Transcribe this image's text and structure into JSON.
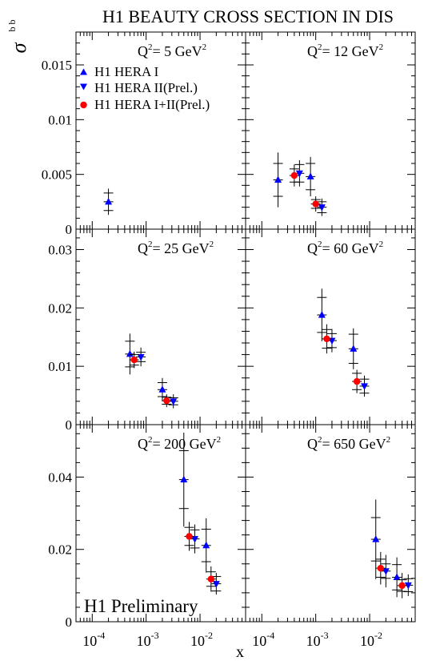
{
  "title": "H1 BEAUTY CROSS SECTION IN DIS",
  "watermark": "H1 Preliminary",
  "ylabel": "σ",
  "ylabel_sup": "b b",
  "xlabel": "x",
  "legend": [
    {
      "label": "H1 HERA I",
      "marker": "triangle-up",
      "color": "#0000ff"
    },
    {
      "label": "H1 HERA II(Prel.)",
      "marker": "triangle-down",
      "color": "#0000ff"
    },
    {
      "label": "H1 HERA I+II(Prel.)",
      "marker": "circle",
      "color": "#ff0000"
    }
  ],
  "x_ticks": [
    {
      "base": "10",
      "exp": "-4",
      "value": 0.0001
    },
    {
      "base": "10",
      "exp": "-3",
      "value": 0.001
    },
    {
      "base": "10",
      "exp": "-2",
      "value": 0.01
    }
  ],
  "chart_data": [
    {
      "type": "scatter",
      "panel": "Q2_5",
      "q2_label": "Q",
      "q2_text": "= 5 GeV",
      "x_scale": "log",
      "xlim": [
        5e-05,
        0.07
      ],
      "ylim": [
        0,
        0.018
      ],
      "yticks": [
        {
          "v": 0,
          "label": "0"
        },
        {
          "v": 0.005,
          "label": "0.005"
        },
        {
          "v": 0.01,
          "label": "0.01"
        },
        {
          "v": 0.015,
          "label": "0.015"
        }
      ],
      "series": [
        {
          "name": "H1 HERA I",
          "points": [
            {
              "x": 0.0002,
              "y": 0.0025,
              "stat": 0.0008,
              "tot": 0.0012
            }
          ]
        },
        {
          "name": "H1 HERA II(Prel.)",
          "points": []
        },
        {
          "name": "H1 HERA I+II(Prel.)",
          "points": []
        }
      ]
    },
    {
      "type": "scatter",
      "panel": "Q2_12",
      "q2_label": "Q",
      "q2_text": "= 12 GeV",
      "x_scale": "log",
      "xlim": [
        5e-05,
        0.07
      ],
      "ylim": [
        0,
        0.018
      ],
      "yticks": [
        {
          "v": 0,
          "label": ""
        },
        {
          "v": 0.005,
          "label": ""
        },
        {
          "v": 0.01,
          "label": ""
        },
        {
          "v": 0.015,
          "label": ""
        }
      ],
      "series": [
        {
          "name": "H1 HERA I",
          "points": [
            {
              "x": 0.0002,
              "y": 0.0045,
              "stat": 0.0015,
              "tot": 0.0025
            },
            {
              "x": 0.0008,
              "y": 0.0048,
              "stat": 0.0012,
              "tot": 0.0018
            }
          ]
        },
        {
          "name": "H1 HERA II(Prel.)",
          "points": [
            {
              "x": 0.0005,
              "y": 0.0051,
              "stat": 0.0008,
              "tot": 0.0012
            },
            {
              "x": 0.0013,
              "y": 0.002,
              "stat": 0.0005,
              "tot": 0.0008
            }
          ]
        },
        {
          "name": "H1 HERA I+II(Prel.)",
          "points": [
            {
              "x": 0.0004,
              "y": 0.0049,
              "stat": 0.0006,
              "tot": 0.001
            },
            {
              "x": 0.001,
              "y": 0.0023,
              "stat": 0.0004,
              "tot": 0.0007
            }
          ]
        }
      ]
    },
    {
      "type": "scatter",
      "panel": "Q2_25",
      "q2_label": "Q",
      "q2_text": "= 25 GeV",
      "x_scale": "log",
      "xlim": [
        5e-05,
        0.07
      ],
      "ylim": [
        0,
        0.0335
      ],
      "yticks": [
        {
          "v": 0,
          "label": "0"
        },
        {
          "v": 0.01,
          "label": "0.01"
        },
        {
          "v": 0.02,
          "label": "0.02"
        },
        {
          "v": 0.03,
          "label": "0.03"
        }
      ],
      "series": [
        {
          "name": "H1 HERA I",
          "points": [
            {
              "x": 0.0005,
              "y": 0.0121,
              "stat": 0.0022,
              "tot": 0.0035
            },
            {
              "x": 0.002,
              "y": 0.006,
              "stat": 0.0012,
              "tot": 0.002
            }
          ]
        },
        {
          "name": "H1 HERA II(Prel.)",
          "points": [
            {
              "x": 0.0008,
              "y": 0.0116,
              "stat": 0.0008,
              "tot": 0.0016
            },
            {
              "x": 0.0032,
              "y": 0.004,
              "stat": 0.0006,
              "tot": 0.0012
            }
          ]
        },
        {
          "name": "H1 HERA I+II(Prel.)",
          "points": [
            {
              "x": 0.0006,
              "y": 0.0111,
              "stat": 0.0009,
              "tot": 0.0014
            },
            {
              "x": 0.0024,
              "y": 0.0041,
              "stat": 0.0006,
              "tot": 0.0011
            }
          ]
        }
      ]
    },
    {
      "type": "scatter",
      "panel": "Q2_60",
      "q2_label": "Q",
      "q2_text": "= 60 GeV",
      "x_scale": "log",
      "xlim": [
        5e-05,
        0.07
      ],
      "ylim": [
        0,
        0.0335
      ],
      "yticks": [
        {
          "v": 0,
          "label": ""
        },
        {
          "v": 0.01,
          "label": ""
        },
        {
          "v": 0.02,
          "label": ""
        },
        {
          "v": 0.03,
          "label": ""
        }
      ],
      "series": [
        {
          "name": "H1 HERA I",
          "points": [
            {
              "x": 0.0013,
              "y": 0.0188,
              "stat": 0.003,
              "tot": 0.0045
            },
            {
              "x": 0.005,
              "y": 0.013,
              "stat": 0.0025,
              "tot": 0.0035
            }
          ]
        },
        {
          "name": "H1 HERA II(Prel.)",
          "points": [
            {
              "x": 0.002,
              "y": 0.0144,
              "stat": 0.0012,
              "tot": 0.002
            },
            {
              "x": 0.008,
              "y": 0.0066,
              "stat": 0.0012,
              "tot": 0.0018
            }
          ]
        },
        {
          "name": "H1 HERA I+II(Prel.)",
          "points": [
            {
              "x": 0.0016,
              "y": 0.0147,
              "stat": 0.0016,
              "tot": 0.0025
            },
            {
              "x": 0.0058,
              "y": 0.0074,
              "stat": 0.0014,
              "tot": 0.002
            }
          ]
        }
      ]
    },
    {
      "type": "scatter",
      "panel": "Q2_200",
      "q2_label": "Q",
      "q2_text": "= 200 GeV",
      "x_scale": "log",
      "xlim": [
        5e-05,
        0.07
      ],
      "ylim": [
        0,
        0.0545
      ],
      "yticks": [
        {
          "v": 0,
          "label": "0"
        },
        {
          "v": 0.02,
          "label": "0.02"
        },
        {
          "v": 0.04,
          "label": "0.04"
        }
      ],
      "series": [
        {
          "name": "H1 HERA I",
          "points": [
            {
              "x": 0.005,
              "y": 0.0393,
              "stat": 0.008,
              "tot": 0.013
            },
            {
              "x": 0.013,
              "y": 0.0211,
              "stat": 0.0045,
              "tot": 0.0075
            }
          ]
        },
        {
          "name": "H1 HERA II(Prel.)",
          "points": [
            {
              "x": 0.008,
              "y": 0.0229,
              "stat": 0.0025,
              "tot": 0.004
            },
            {
              "x": 0.02,
              "y": 0.0105,
              "stat": 0.002,
              "tot": 0.003
            }
          ]
        },
        {
          "name": "H1 HERA I+II(Prel.)",
          "points": [
            {
              "x": 0.0063,
              "y": 0.0236,
              "stat": 0.0025,
              "tot": 0.004
            },
            {
              "x": 0.016,
              "y": 0.0118,
              "stat": 0.002,
              "tot": 0.0035
            }
          ]
        }
      ]
    },
    {
      "type": "scatter",
      "panel": "Q2_650",
      "q2_label": "Q",
      "q2_text": "= 650 GeV",
      "x_scale": "log",
      "xlim": [
        5e-05,
        0.07
      ],
      "ylim": [
        0,
        0.0545
      ],
      "yticks": [
        {
          "v": 0,
          "label": ""
        },
        {
          "v": 0.02,
          "label": ""
        },
        {
          "v": 0.04,
          "label": ""
        }
      ],
      "series": [
        {
          "name": "H1 HERA I",
          "points": [
            {
              "x": 0.013,
              "y": 0.0228,
              "stat": 0.006,
              "tot": 0.011
            },
            {
              "x": 0.032,
              "y": 0.0123,
              "stat": 0.0035,
              "tot": 0.0055
            }
          ]
        },
        {
          "name": "H1 HERA II(Prel.)",
          "points": [
            {
              "x": 0.02,
              "y": 0.014,
              "stat": 0.002,
              "tot": 0.0045
            },
            {
              "x": 0.052,
              "y": 0.0101,
              "stat": 0.0018,
              "tot": 0.003
            }
          ]
        },
        {
          "name": "H1 HERA I+II(Prel.)",
          "points": [
            {
              "x": 0.016,
              "y": 0.0148,
              "stat": 0.0025,
              "tot": 0.0045
            },
            {
              "x": 0.04,
              "y": 0.01,
              "stat": 0.0016,
              "tot": 0.0035
            }
          ]
        }
      ]
    }
  ]
}
